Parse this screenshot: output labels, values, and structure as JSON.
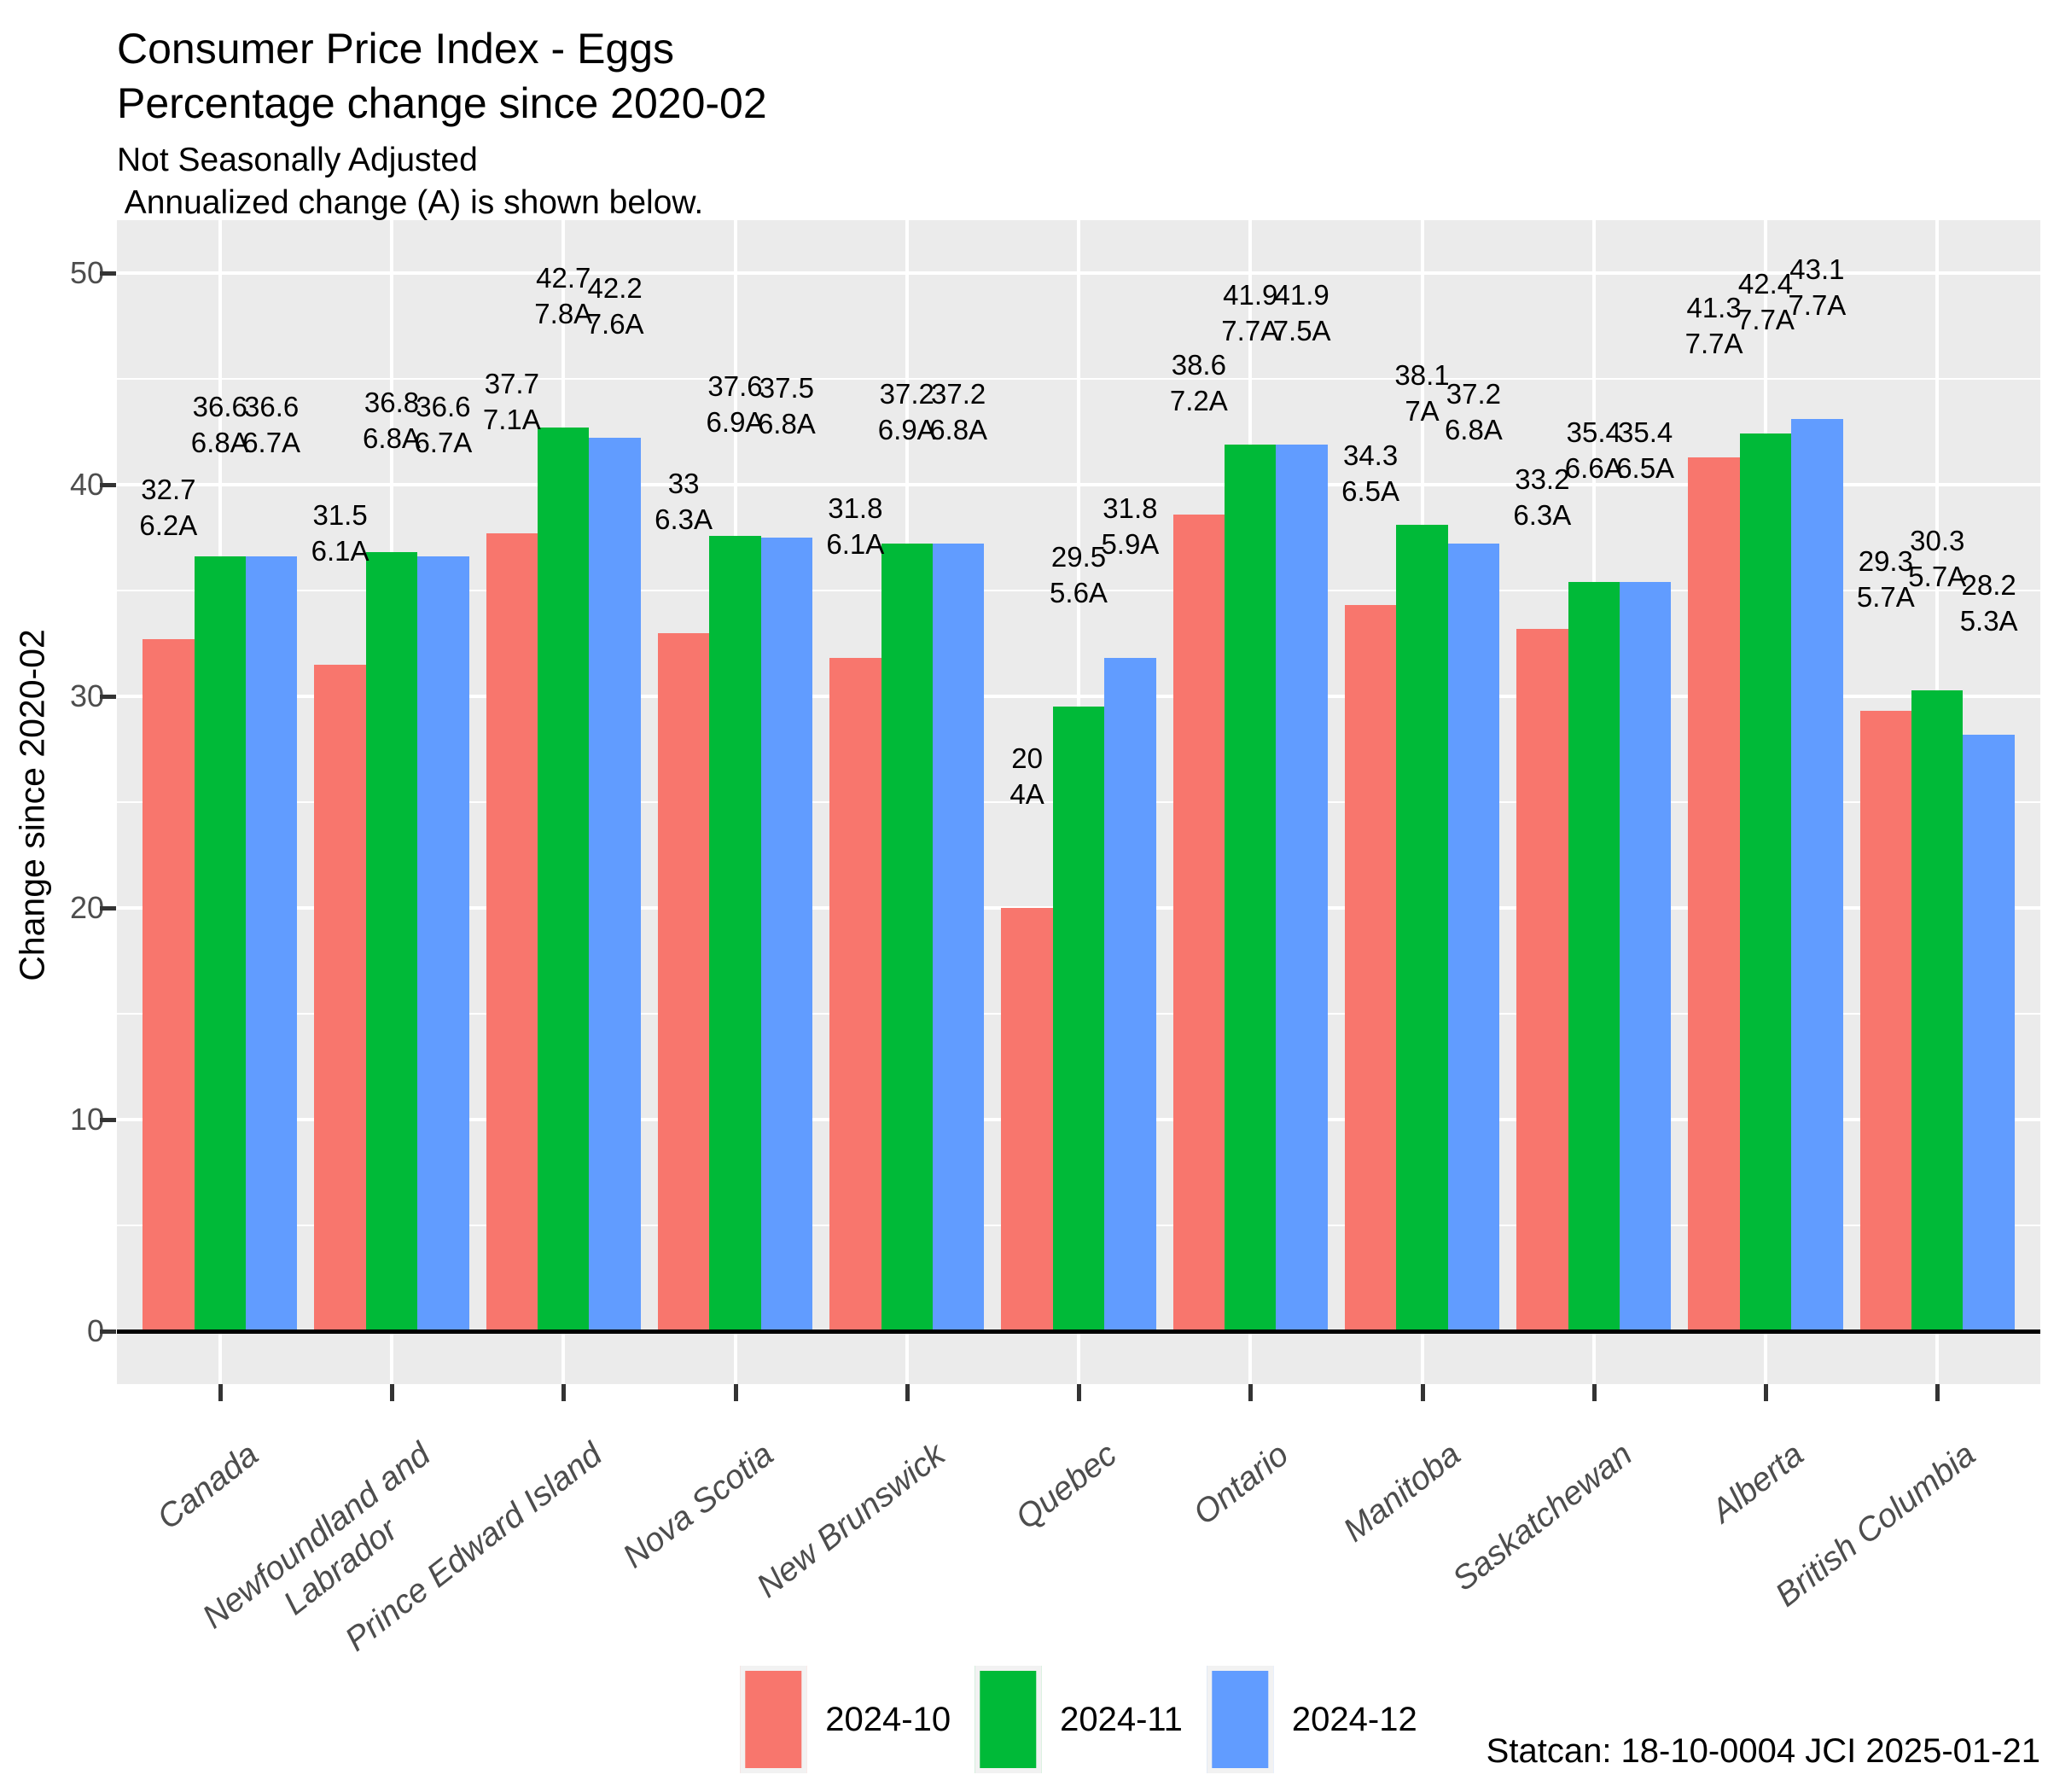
{
  "header": {
    "title_line1": "Consumer Price Index - Eggs",
    "title_line2": "Percentage change since 2020-02",
    "subtitle_line1": "Not Seasonally Adjusted",
    "subtitle_line2": " Annualized change (A) is shown below."
  },
  "chart_data": {
    "type": "bar",
    "title": "Consumer Price Index - Eggs Percentage change since 2020-02",
    "subtitle": "Not Seasonally Adjusted. Annualized change (A) is shown below.",
    "xlabel": "",
    "ylabel": "Change since 2020-02",
    "ylim": [
      -2.5,
      52.5
    ],
    "yticks": [
      0,
      10,
      20,
      30,
      40,
      50
    ],
    "yticks_minor": [
      5,
      15,
      25,
      35,
      45
    ],
    "grid": "white major and minor gridlines on grey panel",
    "legend_position": "bottom",
    "panel_color": "#EBEBEB",
    "categories": [
      "Canada",
      "Newfoundland and Labrador",
      "Prince Edward Island",
      "Nova Scotia",
      "New Brunswick",
      "Quebec",
      "Ontario",
      "Manitoba",
      "Saskatchewan",
      "Alberta",
      "British Columbia"
    ],
    "x_tick_display": [
      "Canada",
      "Newfoundland and\nLabrador",
      "Prince Edward Island",
      "Nova Scotia",
      "New Brunswick",
      "Quebec",
      "Ontario",
      "Manitoba",
      "Saskatchewan",
      "Alberta",
      "British Columbia"
    ],
    "series": [
      {
        "name": "2024-10",
        "color": "#F8766D",
        "values": [
          32.7,
          31.5,
          37.7,
          33,
          31.8,
          20,
          38.6,
          34.3,
          33.2,
          41.3,
          29.3
        ],
        "value_labels": [
          "32.7",
          "31.5",
          "37.7",
          "33",
          "31.8",
          "20",
          "38.6",
          "34.3",
          "33.2",
          "41.3",
          "29.3"
        ],
        "annualized_labels": [
          "6.2A",
          "6.1A",
          "7.1A",
          "6.3A",
          "6.1A",
          "4A",
          "7.2A",
          "6.5A",
          "6.3A",
          "7.7A",
          "5.7A"
        ]
      },
      {
        "name": "2024-11",
        "color": "#00BA38",
        "values": [
          36.6,
          36.8,
          42.7,
          37.6,
          37.2,
          29.5,
          41.9,
          38.1,
          35.4,
          42.4,
          30.3
        ],
        "value_labels": [
          "36.6",
          "36.8",
          "42.7",
          "37.6",
          "37.2",
          "29.5",
          "41.9",
          "38.1",
          "35.4",
          "42.4",
          "30.3"
        ],
        "annualized_labels": [
          "6.8A",
          "6.8A",
          "7.8A",
          "6.9A",
          "6.9A",
          "5.6A",
          "7.7A",
          "7A",
          "6.6A",
          "7.7A",
          "5.7A"
        ]
      },
      {
        "name": "2024-12",
        "color": "#619CFF",
        "values": [
          36.6,
          36.6,
          42.2,
          37.5,
          37.2,
          31.8,
          41.9,
          37.2,
          35.4,
          43.1,
          28.2
        ],
        "value_labels": [
          "36.6",
          "36.6",
          "42.2",
          "37.5",
          "37.2",
          "31.8",
          "41.9",
          "37.2",
          "35.4",
          "43.1",
          "28.2"
        ],
        "annualized_labels": [
          "6.7A",
          "6.7A",
          "7.6A",
          "6.8A",
          "6.8A",
          "5.9A",
          "7.5A",
          "6.8A",
          "6.5A",
          "7.7A",
          "5.3A"
        ]
      }
    ]
  },
  "legend": {
    "items": [
      {
        "label": "2024-10",
        "color": "#F8766D"
      },
      {
        "label": "2024-11",
        "color": "#00BA38"
      },
      {
        "label": "2024-12",
        "color": "#619CFF"
      }
    ]
  },
  "caption": "Statcan: 18-10-0004 JCI 2025-01-21",
  "colors": {
    "panel": "#EBEBEB",
    "grid": "#FFFFFF",
    "axis_text": "#4D4D4D",
    "tick_mark": "#333333",
    "zero_line": "#000000",
    "bar_label": "#000000"
  }
}
